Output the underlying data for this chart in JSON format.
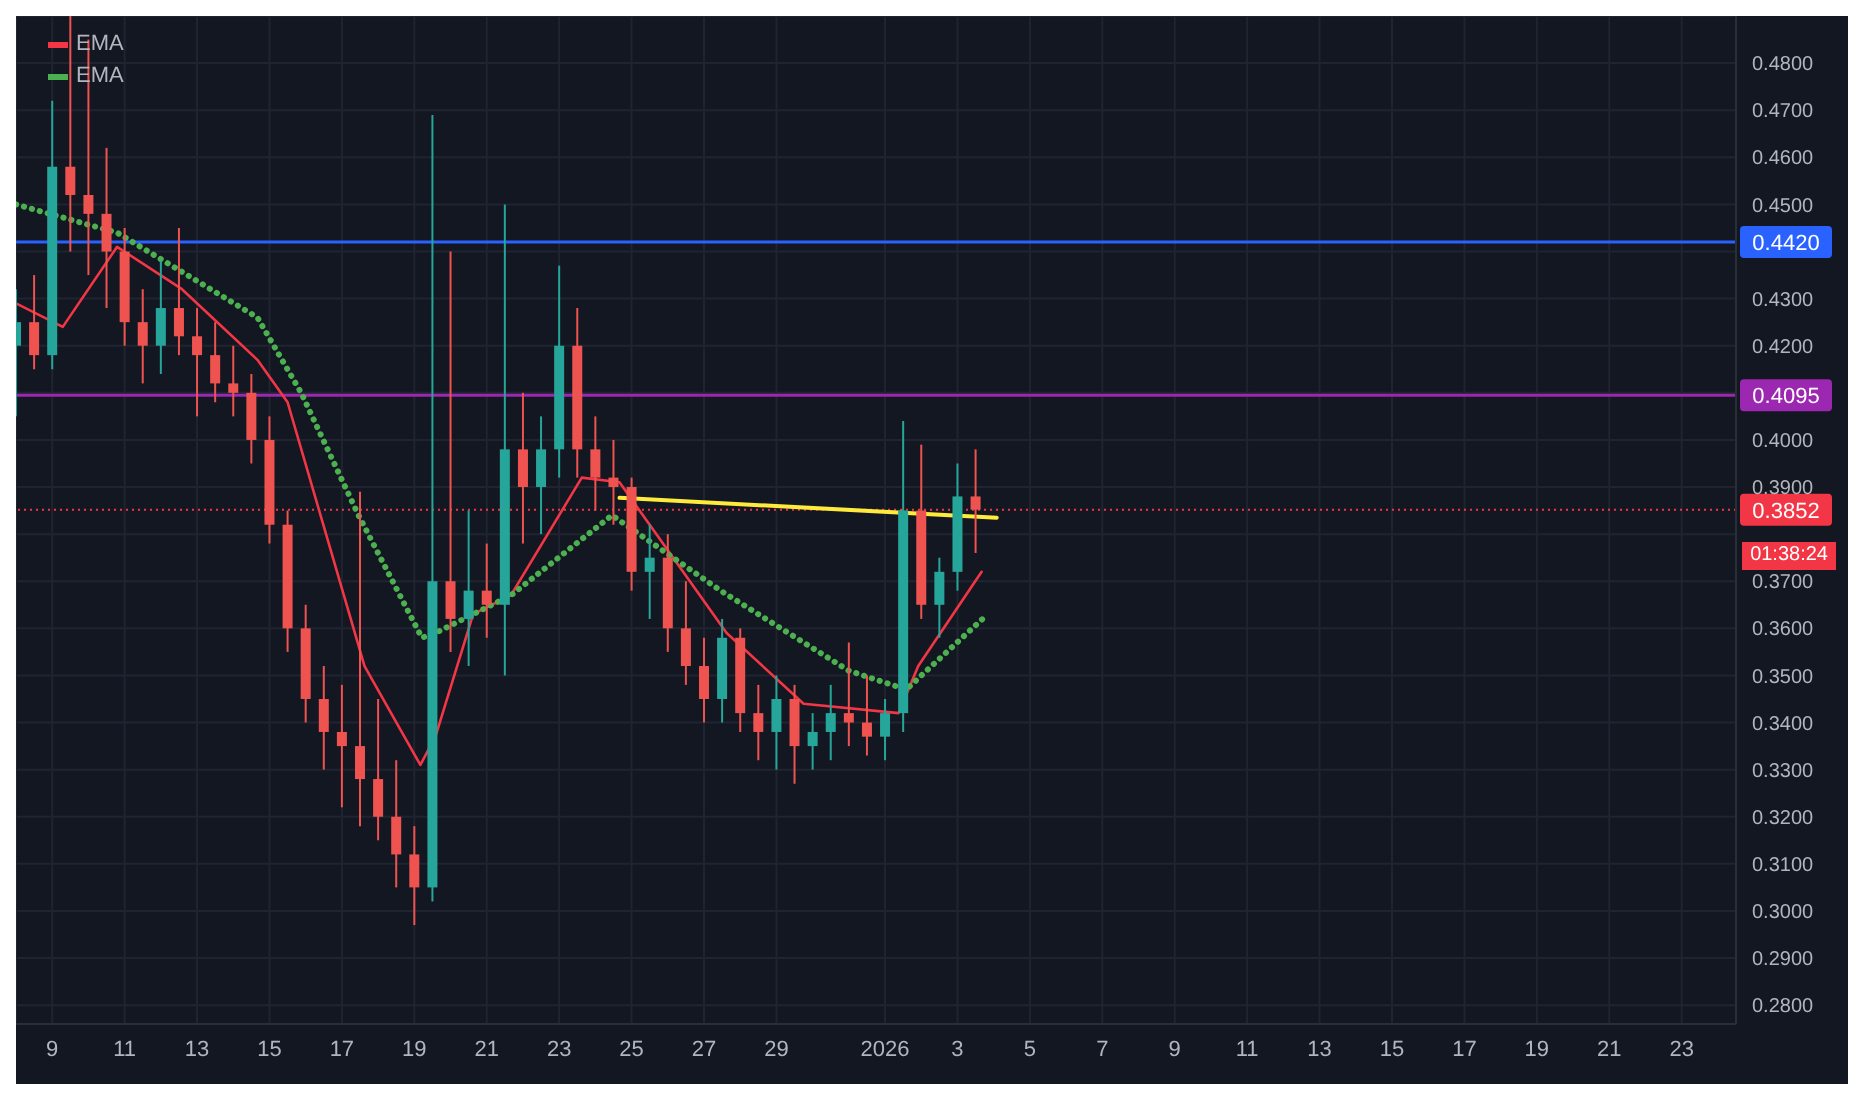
{
  "chart_data": {
    "type": "candlestick",
    "x": [
      "2025-12-08T00:00",
      "2025-12-08T12:00",
      "2025-12-09T00:00",
      "2025-12-09T12:00",
      "2025-12-10T00:00",
      "2025-12-10T12:00",
      "2025-12-11T00:00",
      "2025-12-11T12:00",
      "2025-12-12T00:00",
      "2025-12-12T12:00",
      "2025-12-13T00:00",
      "2025-12-13T12:00",
      "2025-12-14T00:00",
      "2025-12-14T12:00",
      "2025-12-15T00:00",
      "2025-12-15T12:00",
      "2025-12-16T00:00",
      "2025-12-16T12:00",
      "2025-12-17T00:00",
      "2025-12-17T12:00",
      "2025-12-18T00:00",
      "2025-12-18T12:00",
      "2025-12-19T00:00",
      "2025-12-19T12:00",
      "2025-12-20T00:00",
      "2025-12-20T12:00",
      "2025-12-21T00:00",
      "2025-12-21T12:00",
      "2025-12-22T00:00",
      "2025-12-22T12:00",
      "2025-12-23T00:00",
      "2025-12-23T12:00",
      "2025-12-24T00:00",
      "2025-12-24T12:00",
      "2025-12-25T00:00",
      "2025-12-25T12:00",
      "2025-12-26T00:00",
      "2025-12-26T12:00",
      "2025-12-27T00:00",
      "2025-12-27T12:00",
      "2025-12-28T00:00",
      "2025-12-28T12:00",
      "2025-12-29T00:00",
      "2025-12-29T12:00",
      "2025-12-30T00:00",
      "2025-12-30T12:00",
      "2025-12-31T00:00",
      "2025-12-31T12:00",
      "2026-01-01T00:00",
      "2026-01-01T12:00",
      "2026-01-02T00:00",
      "2026-01-02T12:00",
      "2026-01-03T00:00",
      "2026-01-03T12:00"
    ],
    "ohlc": [
      [
        0.42,
        0.432,
        0.405,
        0.425
      ],
      [
        0.425,
        0.435,
        0.415,
        0.418
      ],
      [
        0.418,
        0.472,
        0.415,
        0.458
      ],
      [
        0.458,
        0.49,
        0.44,
        0.452
      ],
      [
        0.452,
        0.485,
        0.435,
        0.448
      ],
      [
        0.448,
        0.462,
        0.428,
        0.44
      ],
      [
        0.44,
        0.445,
        0.42,
        0.425
      ],
      [
        0.425,
        0.432,
        0.412,
        0.42
      ],
      [
        0.42,
        0.438,
        0.414,
        0.428
      ],
      [
        0.428,
        0.445,
        0.418,
        0.422
      ],
      [
        0.422,
        0.428,
        0.405,
        0.418
      ],
      [
        0.418,
        0.425,
        0.408,
        0.412
      ],
      [
        0.412,
        0.42,
        0.405,
        0.41
      ],
      [
        0.41,
        0.414,
        0.395,
        0.4
      ],
      [
        0.4,
        0.405,
        0.378,
        0.382
      ],
      [
        0.382,
        0.385,
        0.355,
        0.36
      ],
      [
        0.36,
        0.365,
        0.34,
        0.345
      ],
      [
        0.345,
        0.352,
        0.33,
        0.338
      ],
      [
        0.338,
        0.348,
        0.322,
        0.335
      ],
      [
        0.335,
        0.389,
        0.318,
        0.328
      ],
      [
        0.328,
        0.345,
        0.315,
        0.32
      ],
      [
        0.32,
        0.332,
        0.305,
        0.312
      ],
      [
        0.312,
        0.318,
        0.297,
        0.305
      ],
      [
        0.305,
        0.469,
        0.302,
        0.37
      ],
      [
        0.37,
        0.44,
        0.355,
        0.362
      ],
      [
        0.362,
        0.385,
        0.352,
        0.368
      ],
      [
        0.368,
        0.378,
        0.358,
        0.365
      ],
      [
        0.365,
        0.45,
        0.35,
        0.398
      ],
      [
        0.398,
        0.41,
        0.378,
        0.39
      ],
      [
        0.39,
        0.405,
        0.38,
        0.398
      ],
      [
        0.398,
        0.437,
        0.392,
        0.42
      ],
      [
        0.42,
        0.428,
        0.392,
        0.398
      ],
      [
        0.398,
        0.405,
        0.385,
        0.392
      ],
      [
        0.392,
        0.4,
        0.382,
        0.39
      ],
      [
        0.39,
        0.392,
        0.368,
        0.372
      ],
      [
        0.372,
        0.382,
        0.362,
        0.375
      ],
      [
        0.375,
        0.38,
        0.355,
        0.36
      ],
      [
        0.36,
        0.37,
        0.348,
        0.352
      ],
      [
        0.352,
        0.358,
        0.34,
        0.345
      ],
      [
        0.345,
        0.362,
        0.34,
        0.358
      ],
      [
        0.358,
        0.36,
        0.338,
        0.342
      ],
      [
        0.342,
        0.348,
        0.332,
        0.338
      ],
      [
        0.338,
        0.35,
        0.33,
        0.345
      ],
      [
        0.345,
        0.348,
        0.327,
        0.335
      ],
      [
        0.335,
        0.342,
        0.33,
        0.338
      ],
      [
        0.338,
        0.348,
        0.332,
        0.342
      ],
      [
        0.342,
        0.357,
        0.335,
        0.34
      ],
      [
        0.34,
        0.35,
        0.333,
        0.337
      ],
      [
        0.337,
        0.345,
        0.332,
        0.342
      ],
      [
        0.342,
        0.404,
        0.338,
        0.385
      ],
      [
        0.385,
        0.399,
        0.362,
        0.365
      ],
      [
        0.365,
        0.375,
        0.358,
        0.372
      ],
      [
        0.372,
        0.395,
        0.368,
        0.388
      ],
      [
        0.388,
        0.398,
        0.376,
        0.3852
      ]
    ],
    "series": [
      {
        "name": "EMA",
        "type": "line",
        "color": "#f23645",
        "line_style": "solid",
        "x": [
          "2025-12-08T00:00",
          "2025-12-09T07:00",
          "2025-12-10T19:00",
          "2025-12-12T14:00",
          "2025-12-14T16:00",
          "2025-12-15T12:00",
          "2025-12-17T15:00",
          "2025-12-19T04:00",
          "2025-12-19T14:00",
          "2025-12-20T15:00",
          "2025-12-21T16:00",
          "2025-12-23T15:00",
          "2025-12-24T16:00",
          "2025-12-27T15:00",
          "2025-12-29T18:00",
          "2026-01-01T09:00",
          "2026-01-01T22:00",
          "2026-01-03T16:00"
        ],
        "values": [
          0.429,
          0.424,
          0.441,
          0.432,
          0.417,
          0.408,
          0.352,
          0.331,
          0.337,
          0.363,
          0.367,
          0.392,
          0.391,
          0.359,
          0.344,
          0.342,
          0.352,
          0.372
        ]
      },
      {
        "name": "EMA",
        "type": "line",
        "color": "#4caf50",
        "line_style": "dotted",
        "x": [
          "2025-12-08T00:00",
          "2025-12-10T19:00",
          "2025-12-14T16:00",
          "2025-12-15T21:00",
          "2025-12-17T11:00",
          "2025-12-19T05:00",
          "2025-12-19T14:00",
          "2025-12-21T16:00",
          "2025-12-24T11:00",
          "2025-12-27T11:00",
          "2025-12-31T00:00",
          "2026-01-01T14:00",
          "2026-01-03T20:00"
        ],
        "values": [
          0.45,
          0.444,
          0.426,
          0.41,
          0.384,
          0.358,
          0.359,
          0.367,
          0.384,
          0.368,
          0.351,
          0.347,
          0.363
        ]
      },
      {
        "type": "line",
        "color": "#ffeb3b",
        "line_style": "solid",
        "x": [
          "2025-12-24T16:00",
          "2026-01-04T02:00"
        ],
        "values": [
          0.3877,
          0.3835
        ]
      }
    ],
    "xlim": [
      "2025-12-08T00:00",
      "2026-01-24T12:00"
    ],
    "xticks": [
      {
        "value": "2025-12-09",
        "label": "9"
      },
      {
        "value": "2025-12-11",
        "label": "11"
      },
      {
        "value": "2025-12-13",
        "label": "13"
      },
      {
        "value": "2025-12-15",
        "label": "15"
      },
      {
        "value": "2025-12-17",
        "label": "17"
      },
      {
        "value": "2025-12-19",
        "label": "19"
      },
      {
        "value": "2025-12-21",
        "label": "21"
      },
      {
        "value": "2025-12-23",
        "label": "23"
      },
      {
        "value": "2025-12-25",
        "label": "25"
      },
      {
        "value": "2025-12-27",
        "label": "27"
      },
      {
        "value": "2025-12-29",
        "label": "29"
      },
      {
        "value": "2026-01-01",
        "label": "2026"
      },
      {
        "value": "2026-01-03",
        "label": "3"
      },
      {
        "value": "2026-01-05",
        "label": "5"
      },
      {
        "value": "2026-01-07",
        "label": "7"
      },
      {
        "value": "2026-01-09",
        "label": "9"
      },
      {
        "value": "2026-01-11",
        "label": "11"
      },
      {
        "value": "2026-01-13",
        "label": "13"
      },
      {
        "value": "2026-01-15",
        "label": "15"
      },
      {
        "value": "2026-01-17",
        "label": "17"
      },
      {
        "value": "2026-01-19",
        "label": "19"
      },
      {
        "value": "2026-01-21",
        "label": "21"
      },
      {
        "value": "2026-01-23",
        "label": "23"
      }
    ],
    "ylim": [
      0.276,
      0.49
    ],
    "yticks": [
      {
        "value": 0.28,
        "label": "0.2800"
      },
      {
        "value": 0.29,
        "label": "0.2900"
      },
      {
        "value": 0.3,
        "label": "0.3000"
      },
      {
        "value": 0.31,
        "label": "0.3100"
      },
      {
        "value": 0.32,
        "label": "0.3200"
      },
      {
        "value": 0.33,
        "label": "0.3300"
      },
      {
        "value": 0.34,
        "label": "0.3400"
      },
      {
        "value": 0.35,
        "label": "0.3500"
      },
      {
        "value": 0.36,
        "label": "0.3600"
      },
      {
        "value": 0.37,
        "label": "0.3700"
      },
      {
        "value": 0.38,
        "label": null
      },
      {
        "value": 0.39,
        "label": "0.3900"
      },
      {
        "value": 0.4,
        "label": "0.4000"
      },
      {
        "value": 0.41,
        "label": null
      },
      {
        "value": 0.42,
        "label": "0.4200"
      },
      {
        "value": 0.43,
        "label": "0.4300"
      },
      {
        "value": 0.44,
        "label": null
      },
      {
        "value": 0.45,
        "label": "0.4500"
      },
      {
        "value": 0.46,
        "label": "0.4600"
      },
      {
        "value": 0.47,
        "label": "0.4700"
      },
      {
        "value": 0.48,
        "label": "0.4800"
      }
    ],
    "ref_lines": [
      {
        "axis": "y",
        "value": 0.442,
        "label": "0.4420",
        "color": "#2962ff",
        "line_style": "solid"
      },
      {
        "axis": "y",
        "value": 0.4095,
        "label": "0.4095",
        "color": "#9c27b0",
        "line_style": "solid"
      },
      {
        "axis": "y",
        "value": 0.3852,
        "label": "0.3852",
        "color": "#f23645",
        "line_style": "dotted"
      }
    ],
    "annotations": [
      "01:38:24"
    ],
    "grid": true,
    "legend": "top left"
  }
}
